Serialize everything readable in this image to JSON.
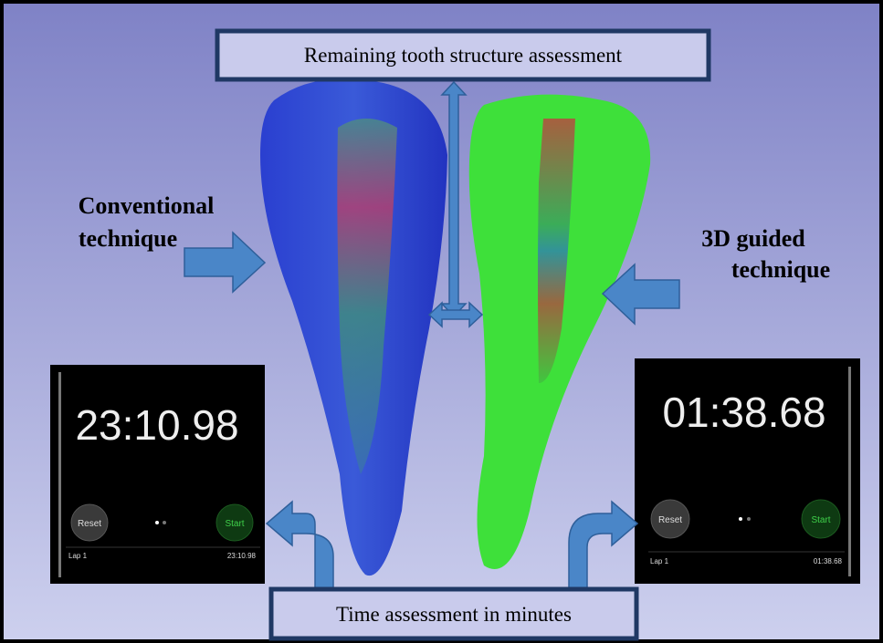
{
  "top_box": {
    "label": "Remaining tooth structure assessment"
  },
  "bottom_box": {
    "label": "Time assessment in minutes"
  },
  "left_label": {
    "lines": [
      "Conventional",
      "technique"
    ]
  },
  "right_label": {
    "lines": [
      "3D guided",
      "technique"
    ]
  },
  "left_stopwatch": {
    "time": "23:10.98",
    "reset": "Reset",
    "start": "Start",
    "lap": "Lap 1",
    "lap_time": "23:10.98"
  },
  "right_stopwatch": {
    "time": "01:38.68",
    "reset": "Reset",
    "start": "Start",
    "lap": "Lap 1",
    "lap_time": "01:38.68"
  }
}
